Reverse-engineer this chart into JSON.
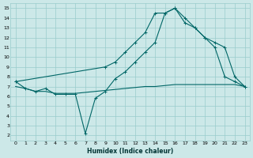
{
  "xlabel": "Humidex (Indice chaleur)",
  "bg_color": "#cce8e8",
  "grid_color": "#99cccc",
  "line_color": "#006666",
  "xlim": [
    -0.5,
    23.5
  ],
  "ylim": [
    1.5,
    15.5
  ],
  "xticks": [
    0,
    1,
    2,
    3,
    4,
    5,
    6,
    7,
    8,
    9,
    10,
    11,
    12,
    13,
    14,
    15,
    16,
    17,
    18,
    19,
    20,
    21,
    22,
    23
  ],
  "yticks": [
    2,
    3,
    4,
    5,
    6,
    7,
    8,
    9,
    10,
    11,
    12,
    13,
    14,
    15
  ],
  "line1_x": [
    0,
    1,
    2,
    3,
    4,
    5,
    6,
    7,
    8,
    9,
    10,
    11,
    12,
    13,
    14,
    15,
    16,
    17,
    18,
    19,
    20,
    21,
    22,
    23
  ],
  "line1_y": [
    7.0,
    6.8,
    6.5,
    6.5,
    6.3,
    6.3,
    6.3,
    6.4,
    6.5,
    6.6,
    6.7,
    6.8,
    6.9,
    7.0,
    7.0,
    7.1,
    7.2,
    7.2,
    7.2,
    7.2,
    7.2,
    7.2,
    7.2,
    7.0
  ],
  "line2_x": [
    0,
    1,
    2,
    3,
    4,
    5,
    6,
    7,
    8,
    9,
    10,
    11,
    12,
    13,
    14,
    15,
    16,
    17,
    18,
    19,
    20,
    21,
    22,
    23
  ],
  "line2_y": [
    7.5,
    6.8,
    6.5,
    6.8,
    6.2,
    6.2,
    6.2,
    2.2,
    5.8,
    6.5,
    7.8,
    8.5,
    9.5,
    10.5,
    11.5,
    14.5,
    15.0,
    13.5,
    13.0,
    12.0,
    11.0,
    8.0,
    7.5,
    7.0
  ],
  "line3_x": [
    0,
    9,
    10,
    11,
    12,
    13,
    14,
    15,
    16,
    17,
    18,
    19,
    20,
    21,
    22,
    23
  ],
  "line3_y": [
    7.5,
    9.0,
    9.5,
    10.5,
    11.5,
    12.5,
    14.5,
    14.5,
    15.0,
    14.0,
    13.0,
    12.0,
    11.5,
    11.0,
    8.0,
    7.0
  ]
}
